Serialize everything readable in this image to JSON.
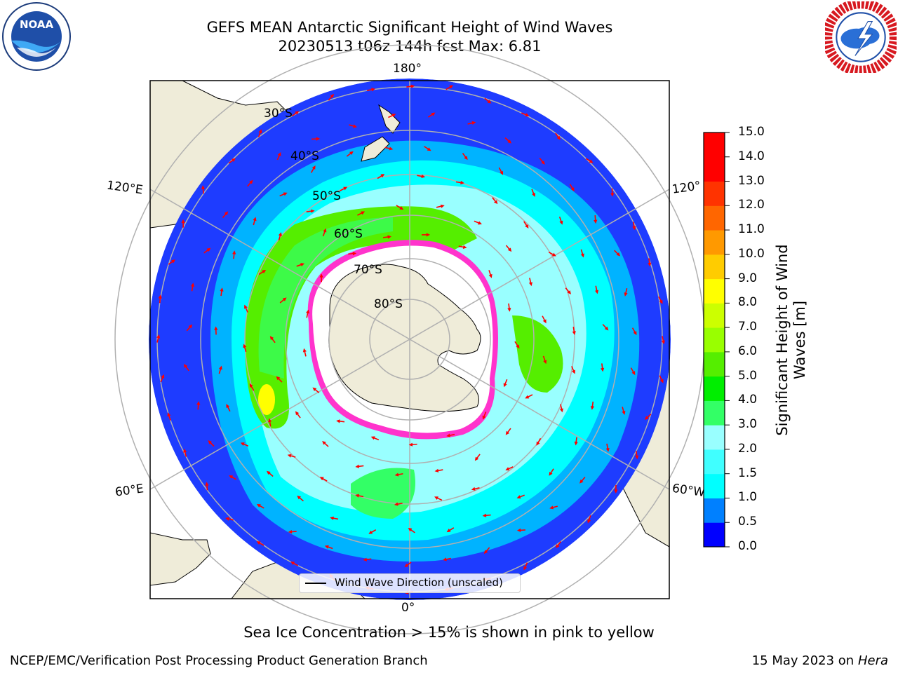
{
  "header": {
    "title_line1": "GEFS MEAN Antarctic Significant Height of Wind Waves",
    "title_line2": "20230513 t06z 144h fcst   Max: 6.81"
  },
  "logos": {
    "left": "noaa-logo",
    "left_text": "NOAA",
    "right": "nws-logo"
  },
  "map": {
    "longitude_labels": {
      "top": "180°",
      "left_upper": "120°E",
      "right_upper": "120°",
      "left_lower": "60°E",
      "right_lower": "60°W",
      "bottom": "0°"
    },
    "latitude_labels": [
      "30°S",
      "40°S",
      "50°S",
      "60°S",
      "70°S",
      "80°S"
    ],
    "legend_label": "Wind Wave Direction (unscaled)",
    "colors": {
      "land": "#efecd9",
      "ice": "#ffffff",
      "ice_edge": "#ff33cc"
    }
  },
  "colorbar": {
    "title": "Significant Height of Wind Waves [m]",
    "ticks": [
      "0.0",
      "0.5",
      "1.0",
      "1.5",
      "2.0",
      "3.0",
      "4.0",
      "5.0",
      "6.0",
      "7.0",
      "8.0",
      "9.0",
      "10.0",
      "11.0",
      "12.0",
      "13.0",
      "14.0",
      "15.0"
    ],
    "colors": [
      "#0000ff",
      "#0080ff",
      "#00ffff",
      "#40ffff",
      "#99ffff",
      "#33ff66",
      "#00ee00",
      "#55ee00",
      "#99ff00",
      "#ccff00",
      "#ffff00",
      "#ffcc00",
      "#ff9900",
      "#ff6600",
      "#ff3300",
      "#ff0000",
      "#ff0000"
    ]
  },
  "footer": {
    "caption": "Sea Ice Concentration > 15% is shown in pink to yellow",
    "credit": "NCEP/EMC/Verification Post Processing Product Generation Branch",
    "date": "15 May 2023 on",
    "machine": "Hera"
  }
}
